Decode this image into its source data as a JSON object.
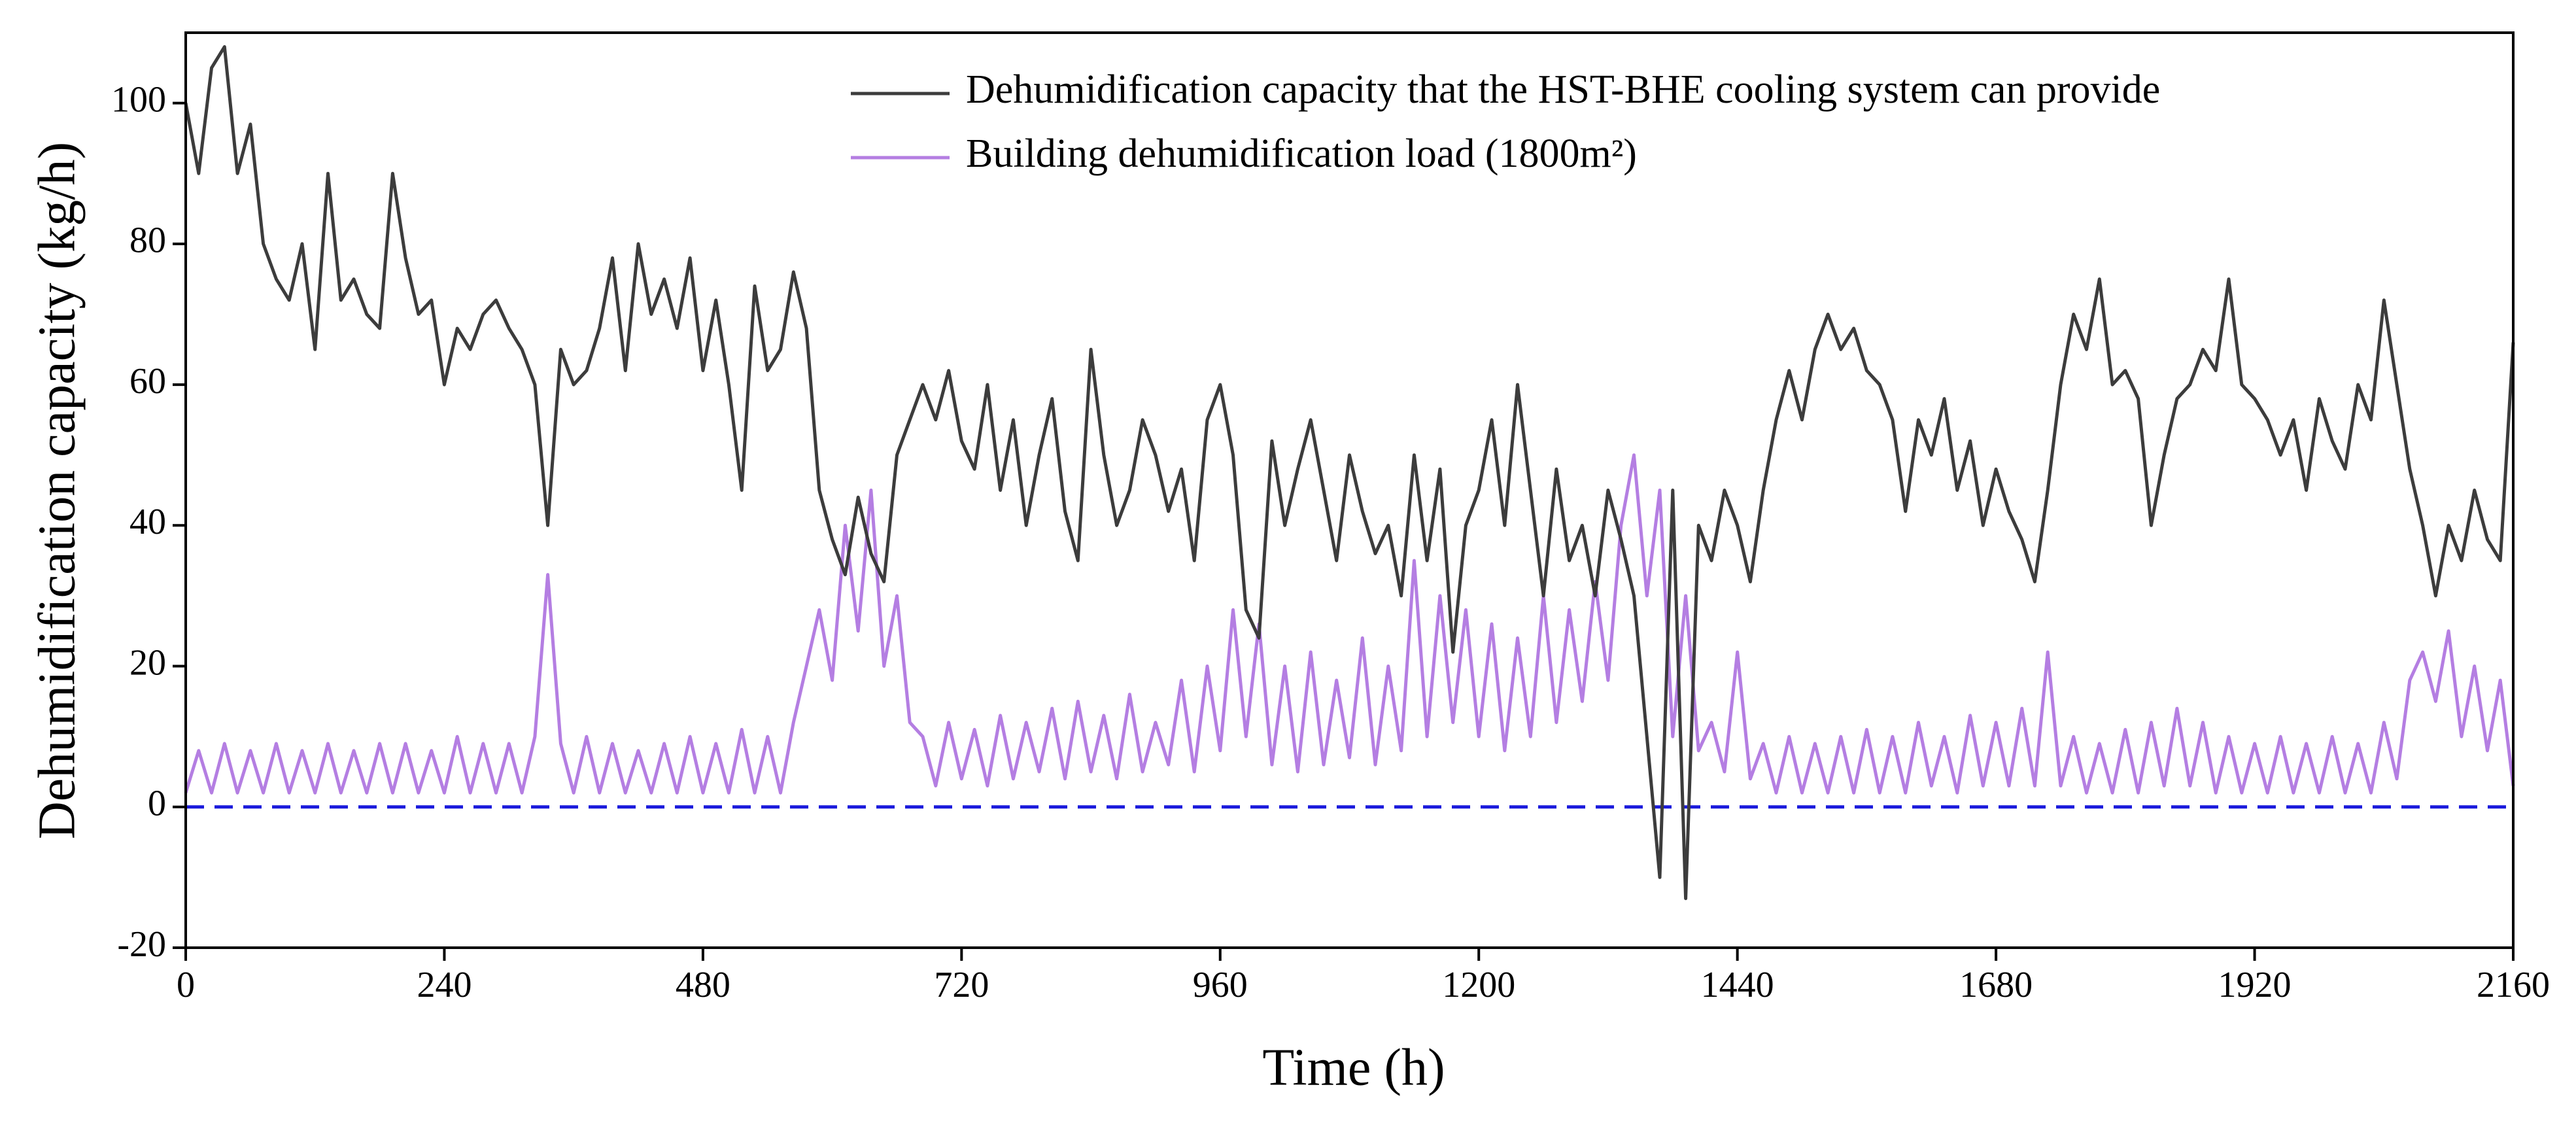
{
  "chart_data": {
    "type": "line",
    "xlabel": "Time (h)",
    "ylabel": "Dehumidification capacity (kg/h)",
    "xlim": [
      0,
      2160
    ],
    "ylim": [
      -20,
      110
    ],
    "xticks": [
      0,
      240,
      480,
      720,
      960,
      1200,
      1440,
      1680,
      1920,
      2160
    ],
    "yticks": [
      -20,
      0,
      20,
      40,
      60,
      80,
      100
    ],
    "reference_line": {
      "value": 0,
      "color": "#1a1adc"
    },
    "legend": "top",
    "x": [
      0,
      12,
      24,
      36,
      48,
      60,
      72,
      84,
      96,
      108,
      120,
      132,
      144,
      156,
      168,
      180,
      192,
      204,
      216,
      228,
      240,
      252,
      264,
      276,
      288,
      300,
      312,
      324,
      336,
      348,
      360,
      372,
      384,
      396,
      408,
      420,
      432,
      444,
      456,
      468,
      480,
      492,
      504,
      516,
      528,
      540,
      552,
      564,
      576,
      588,
      600,
      612,
      624,
      636,
      648,
      660,
      672,
      684,
      696,
      708,
      720,
      732,
      744,
      756,
      768,
      780,
      792,
      804,
      816,
      828,
      840,
      852,
      864,
      876,
      888,
      900,
      912,
      924,
      936,
      948,
      960,
      972,
      984,
      996,
      1008,
      1020,
      1032,
      1044,
      1056,
      1068,
      1080,
      1092,
      1104,
      1116,
      1128,
      1140,
      1152,
      1164,
      1176,
      1188,
      1200,
      1212,
      1224,
      1236,
      1248,
      1260,
      1272,
      1284,
      1296,
      1308,
      1320,
      1332,
      1344,
      1356,
      1368,
      1380,
      1392,
      1404,
      1416,
      1428,
      1440,
      1452,
      1464,
      1476,
      1488,
      1500,
      1512,
      1524,
      1536,
      1548,
      1560,
      1572,
      1584,
      1596,
      1608,
      1620,
      1632,
      1644,
      1656,
      1668,
      1680,
      1692,
      1704,
      1716,
      1728,
      1740,
      1752,
      1764,
      1776,
      1788,
      1800,
      1812,
      1824,
      1836,
      1848,
      1860,
      1872,
      1884,
      1896,
      1908,
      1920,
      1932,
      1944,
      1956,
      1968,
      1980,
      1992,
      2004,
      2016,
      2028,
      2040,
      2052,
      2064,
      2076,
      2088,
      2100,
      2112,
      2124,
      2136,
      2148,
      2160
    ],
    "series": [
      {
        "name": "Dehumidification capacity that the HST-BHE cooling system can provide",
        "color": "#3c3c3c",
        "values": [
          100,
          90,
          105,
          108,
          90,
          97,
          80,
          75,
          72,
          80,
          65,
          90,
          72,
          75,
          70,
          68,
          90,
          78,
          70,
          72,
          60,
          68,
          65,
          70,
          72,
          68,
          65,
          60,
          40,
          65,
          60,
          62,
          68,
          78,
          62,
          80,
          70,
          75,
          68,
          78,
          62,
          72,
          60,
          45,
          74,
          62,
          65,
          76,
          68,
          45,
          38,
          33,
          44,
          36,
          32,
          50,
          55,
          60,
          55,
          62,
          52,
          48,
          60,
          45,
          55,
          40,
          50,
          58,
          42,
          35,
          65,
          50,
          40,
          45,
          55,
          50,
          42,
          48,
          35,
          55,
          60,
          50,
          28,
          24,
          52,
          40,
          48,
          55,
          45,
          35,
          50,
          42,
          36,
          40,
          30,
          50,
          35,
          48,
          22,
          40,
          45,
          55,
          40,
          60,
          45,
          30,
          48,
          35,
          40,
          30,
          45,
          38,
          30,
          10,
          -10,
          45,
          -13,
          40,
          35,
          45,
          40,
          32,
          45,
          55,
          62,
          55,
          65,
          70,
          65,
          68,
          62,
          60,
          55,
          42,
          55,
          50,
          58,
          45,
          52,
          40,
          48,
          42,
          38,
          32,
          45,
          60,
          70,
          65,
          75,
          60,
          62,
          58,
          40,
          50,
          58,
          60,
          65,
          62,
          75,
          60,
          58,
          55,
          50,
          55,
          45,
          58,
          52,
          48,
          60,
          55,
          72,
          60,
          48,
          40,
          30,
          40,
          35,
          45,
          38,
          35,
          66
        ]
      },
      {
        "name": "Building dehumidification load (1800m²)",
        "color": "#b47ee2",
        "values": [
          2,
          8,
          2,
          9,
          2,
          8,
          2,
          9,
          2,
          8,
          2,
          9,
          2,
          8,
          2,
          9,
          2,
          9,
          2,
          8,
          2,
          10,
          2,
          9,
          2,
          9,
          2,
          10,
          33,
          9,
          2,
          10,
          2,
          9,
          2,
          8,
          2,
          9,
          2,
          10,
          2,
          9,
          2,
          11,
          2,
          10,
          2,
          12,
          20,
          28,
          18,
          40,
          25,
          45,
          20,
          30,
          12,
          10,
          3,
          12,
          4,
          11,
          3,
          13,
          4,
          12,
          5,
          14,
          4,
          15,
          5,
          13,
          4,
          16,
          5,
          12,
          6,
          18,
          5,
          20,
          8,
          28,
          10,
          26,
          6,
          20,
          5,
          22,
          6,
          18,
          7,
          24,
          6,
          20,
          8,
          35,
          10,
          30,
          12,
          28,
          10,
          26,
          8,
          24,
          10,
          30,
          12,
          28,
          15,
          32,
          18,
          40,
          50,
          30,
          45,
          10,
          30,
          8,
          12,
          5,
          22,
          4,
          9,
          2,
          10,
          2,
          9,
          2,
          10,
          2,
          11,
          2,
          10,
          2,
          12,
          3,
          10,
          2,
          13,
          3,
          12,
          3,
          14,
          3,
          22,
          3,
          10,
          2,
          9,
          2,
          11,
          2,
          12,
          3,
          14,
          3,
          12,
          2,
          10,
          2,
          9,
          2,
          10,
          2,
          9,
          2,
          10,
          2,
          9,
          2,
          12,
          4,
          18,
          22,
          15,
          25,
          10,
          20,
          8,
          18,
          3
        ]
      }
    ]
  }
}
